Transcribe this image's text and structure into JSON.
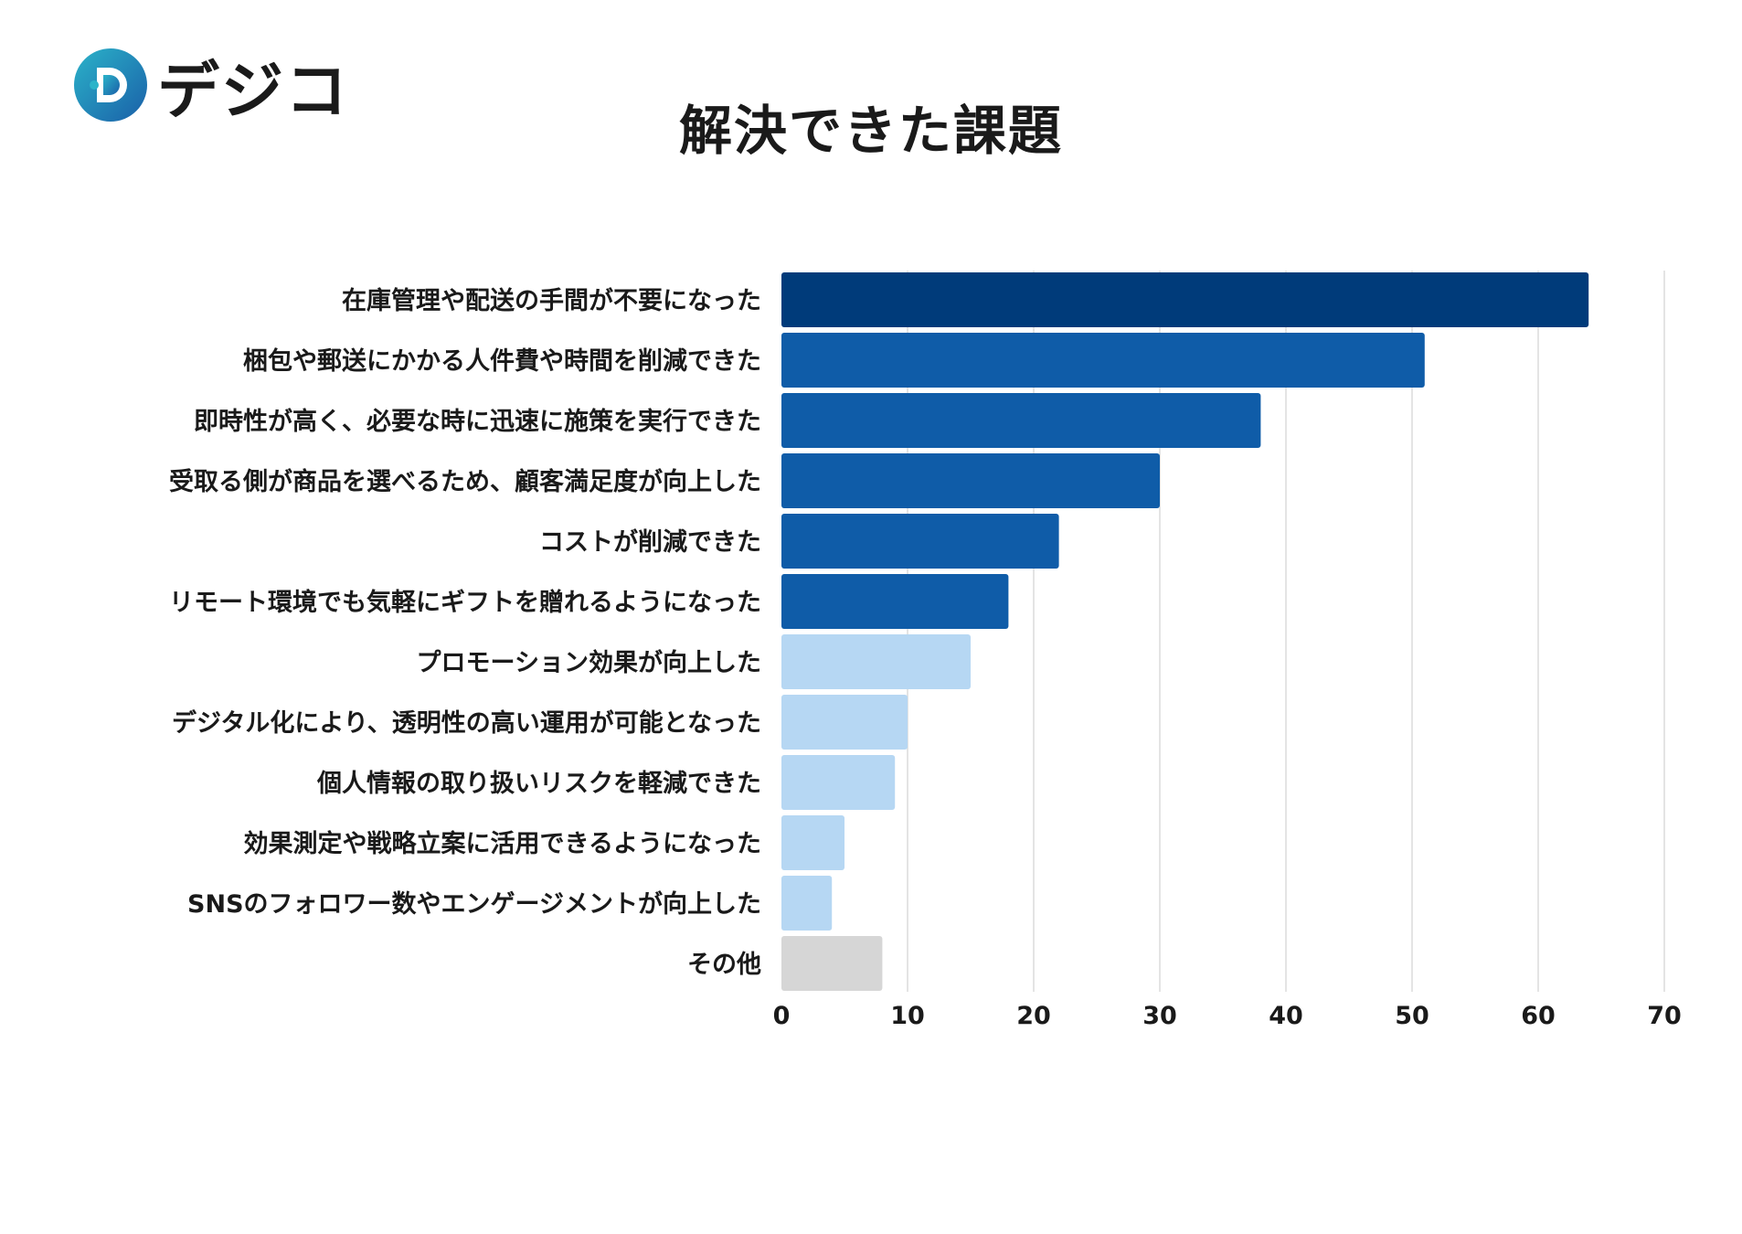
{
  "logo": {
    "text": "デジコ",
    "icon": "digico-d-logo-icon",
    "colors": {
      "start": "#2bb3c9",
      "end": "#1a5fa8"
    }
  },
  "chart_data": {
    "type": "bar",
    "orientation": "horizontal",
    "title": "解決できた課題",
    "xlabel": "",
    "ylabel": "",
    "xlim": [
      0,
      70
    ],
    "xticks": [
      0,
      10,
      20,
      30,
      40,
      50,
      60,
      70
    ],
    "grid": true,
    "categories": [
      "在庫管理や配送の手間が不要になった",
      "梱包や郵送にかかる人件費や時間を削減できた",
      "即時性が高く、必要な時に迅速に施策を実行できた",
      "受取る側が商品を選べるため、顧客満足度が向上した",
      "コストが削減できた",
      "リモート環境でも気軽にギフトを贈れるようになった",
      "プロモーション効果が向上した",
      "デジタル化により、透明性の高い運用が可能となった",
      "個人情報の取り扱いリスクを軽減できた",
      "効果測定や戦略立案に活用できるようになった",
      "SNSのフォロワー数やエンゲージメントが向上した",
      "その他"
    ],
    "values": [
      64,
      51,
      38,
      30,
      22,
      18,
      15,
      10,
      9,
      5,
      4,
      8
    ],
    "bar_colors": [
      "#003b7a",
      "#0f5ca8",
      "#0f5ca8",
      "#0f5ca8",
      "#0f5ca8",
      "#0f5ca8",
      "#b6d7f3",
      "#b6d7f3",
      "#b6d7f3",
      "#b6d7f3",
      "#b6d7f3",
      "#d6d6d6"
    ],
    "grid_color": "#dcdcdc"
  }
}
